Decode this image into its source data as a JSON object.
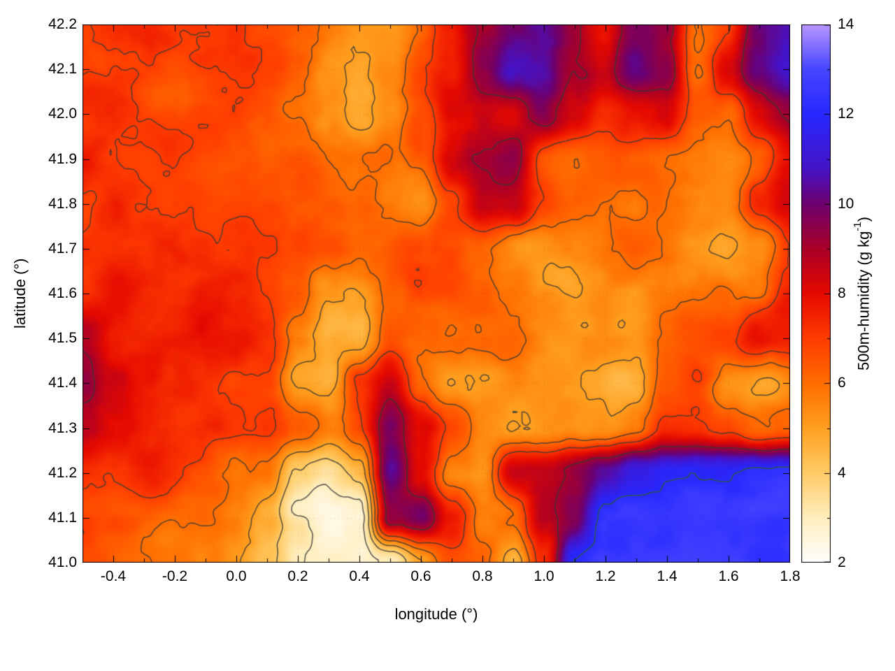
{
  "figure": {
    "xlabel": "longitude (°)",
    "ylabel": "latitude (°)",
    "colorbar_label_main": "500m-humidity (g kg",
    "colorbar_label_sup": "-1",
    "colorbar_label_close": ")"
  },
  "chart_data": {
    "type": "heatmap",
    "title": "",
    "xlabel": "longitude (°)",
    "ylabel": "latitude (°)",
    "colorbar_label": "500m-humidity (g kg^-1)",
    "unit": "g kg^-1",
    "xlim": [
      -0.5,
      1.8
    ],
    "ylim": [
      41.0,
      42.2
    ],
    "clim": [
      2,
      14
    ],
    "grid": "faint-dotted",
    "legend_position": "colorbar-right",
    "xticks": [
      -0.4,
      -0.2,
      0.0,
      0.2,
      0.4,
      0.6,
      0.8,
      1.0,
      1.2,
      1.4,
      1.6,
      1.8
    ],
    "xtick_labels": [
      "-0.4",
      "-0.2",
      "0.0",
      "0.2",
      "0.4",
      "0.6",
      "0.8",
      "1.0",
      "1.2",
      "1.4",
      "1.6",
      "1.8"
    ],
    "yticks": [
      41.0,
      41.1,
      41.2,
      41.3,
      41.4,
      41.5,
      41.6,
      41.7,
      41.8,
      41.9,
      42.0,
      42.1,
      42.2
    ],
    "ytick_labels": [
      "41.0",
      "41.1",
      "41.2",
      "41.3",
      "41.4",
      "41.5",
      "41.6",
      "41.7",
      "41.8",
      "41.9",
      "42.0",
      "42.1",
      "42.2"
    ],
    "cbticks": [
      2,
      4,
      6,
      8,
      10,
      12,
      14
    ],
    "cbtick_labels": [
      "2",
      "4",
      "6",
      "8",
      "10",
      "12",
      "14"
    ],
    "cbtick_minor": [
      3,
      5,
      7,
      9,
      11,
      13
    ],
    "xtick_minor": [
      -0.3,
      -0.1,
      0.1,
      0.3,
      0.5,
      0.7,
      0.9,
      1.1,
      1.3,
      1.5,
      1.7
    ],
    "contour_levels": [
      3,
      4,
      5,
      6,
      7,
      9,
      12
    ],
    "contour_colors": [
      "#383838",
      "#383838",
      "#383838",
      "#383838",
      "#383838",
      "#383838",
      "#2f5f2f"
    ],
    "x": [
      -0.5,
      -0.4,
      -0.3,
      -0.2,
      -0.1,
      0.0,
      0.1,
      0.2,
      0.3,
      0.4,
      0.5,
      0.6,
      0.7,
      0.8,
      0.9,
      1.0,
      1.1,
      1.2,
      1.3,
      1.4,
      1.5,
      1.6,
      1.7,
      1.8
    ],
    "y": [
      42.2,
      42.1,
      42.0,
      41.9,
      41.8,
      41.7,
      41.6,
      41.5,
      41.4,
      41.3,
      41.2,
      41.1,
      41.0
    ],
    "values": [
      [
        7.0,
        7.2,
        7.0,
        6.8,
        7.0,
        7.2,
        6.5,
        6.0,
        5.5,
        5.2,
        5.5,
        6.5,
        7.5,
        9.0,
        10.2,
        10.5,
        9.5,
        8.0,
        9.8,
        9.0,
        5.5,
        6.5,
        9.5,
        10.0
      ],
      [
        7.2,
        7.0,
        6.8,
        6.5,
        6.8,
        7.0,
        6.8,
        6.2,
        5.0,
        4.8,
        5.5,
        7.0,
        7.5,
        9.5,
        10.8,
        10.5,
        9.0,
        8.5,
        10.2,
        9.5,
        6.0,
        8.0,
        10.0,
        10.8
      ],
      [
        7.0,
        7.2,
        7.0,
        6.8,
        7.0,
        7.0,
        6.5,
        6.0,
        5.2,
        4.6,
        5.0,
        6.5,
        8.0,
        8.5,
        8.0,
        9.5,
        8.0,
        7.0,
        7.5,
        8.0,
        6.5,
        6.0,
        8.0,
        9.0
      ],
      [
        7.5,
        7.2,
        7.0,
        7.2,
        7.0,
        6.8,
        6.5,
        6.2,
        6.0,
        5.8,
        6.0,
        6.5,
        8.5,
        9.0,
        9.5,
        6.5,
        6.0,
        6.2,
        6.0,
        5.8,
        5.5,
        5.5,
        6.0,
        7.5
      ],
      [
        7.2,
        7.5,
        7.2,
        7.0,
        7.0,
        7.2,
        7.0,
        6.5,
        6.2,
        6.0,
        5.8,
        5.5,
        7.0,
        8.8,
        8.5,
        7.0,
        6.2,
        6.0,
        5.8,
        6.0,
        5.5,
        5.2,
        7.0,
        8.0
      ],
      [
        7.8,
        7.5,
        7.2,
        7.5,
        7.2,
        7.0,
        6.8,
        6.5,
        6.2,
        6.0,
        6.2,
        6.5,
        6.8,
        6.2,
        5.8,
        5.5,
        5.8,
        6.0,
        6.2,
        6.0,
        5.5,
        5.0,
        5.5,
        7.0
      ],
      [
        7.5,
        8.0,
        7.5,
        7.2,
        7.5,
        7.2,
        7.0,
        6.5,
        5.2,
        5.0,
        6.0,
        6.5,
        6.8,
        6.5,
        6.0,
        5.5,
        5.2,
        5.5,
        5.2,
        5.8,
        6.0,
        6.2,
        6.0,
        7.5
      ],
      [
        9.0,
        7.8,
        7.5,
        7.5,
        7.8,
        7.5,
        7.0,
        5.5,
        4.6,
        4.8,
        7.0,
        6.5,
        6.2,
        6.0,
        6.2,
        5.2,
        5.0,
        5.2,
        5.0,
        6.0,
        6.2,
        6.5,
        7.8,
        7.5
      ],
      [
        9.5,
        8.5,
        8.0,
        7.5,
        7.2,
        7.0,
        6.8,
        4.8,
        4.5,
        7.0,
        8.5,
        6.0,
        5.2,
        5.0,
        5.2,
        5.0,
        4.8,
        4.5,
        4.8,
        6.5,
        7.0,
        5.5,
        5.2,
        5.5
      ],
      [
        8.8,
        8.0,
        7.5,
        7.2,
        7.5,
        7.2,
        7.0,
        6.2,
        5.5,
        6.5,
        9.5,
        8.0,
        6.5,
        5.0,
        4.6,
        4.8,
        5.0,
        5.2,
        6.0,
        7.2,
        7.5,
        7.0,
        6.2,
        6.5
      ],
      [
        7.2,
        7.0,
        7.2,
        7.0,
        6.8,
        6.2,
        6.0,
        4.0,
        3.5,
        4.5,
        10.5,
        8.0,
        5.2,
        5.0,
        8.0,
        8.5,
        9.0,
        10.0,
        11.2,
        11.6,
        11.8,
        11.6,
        11.8,
        12.0
      ],
      [
        6.8,
        6.5,
        6.2,
        6.0,
        6.2,
        5.8,
        5.0,
        3.2,
        2.6,
        2.8,
        9.5,
        10.0,
        7.5,
        5.2,
        5.5,
        8.5,
        9.5,
        12.2,
        12.4,
        12.2,
        12.4,
        12.3,
        12.4,
        12.2
      ],
      [
        6.5,
        6.2,
        6.0,
        5.8,
        5.5,
        4.8,
        4.2,
        2.8,
        2.4,
        2.4,
        2.8,
        5.0,
        6.5,
        6.0,
        4.2,
        7.0,
        11.8,
        12.4,
        12.6,
        12.4,
        12.6,
        12.4,
        12.3,
        12.6
      ]
    ],
    "palette": [
      [
        2.0,
        "#ffffff"
      ],
      [
        3.0,
        "#ffeebe"
      ],
      [
        4.0,
        "#ffcc66"
      ],
      [
        5.0,
        "#ffa020"
      ],
      [
        6.0,
        "#ff6e00"
      ],
      [
        7.0,
        "#ff3c00"
      ],
      [
        8.0,
        "#e60a00"
      ],
      [
        9.0,
        "#aa0028"
      ],
      [
        10.0,
        "#6e006e"
      ],
      [
        10.8,
        "#4614c8"
      ],
      [
        12.0,
        "#2828ff"
      ],
      [
        13.0,
        "#4646ff"
      ],
      [
        14.0,
        "#b996ff"
      ]
    ]
  }
}
